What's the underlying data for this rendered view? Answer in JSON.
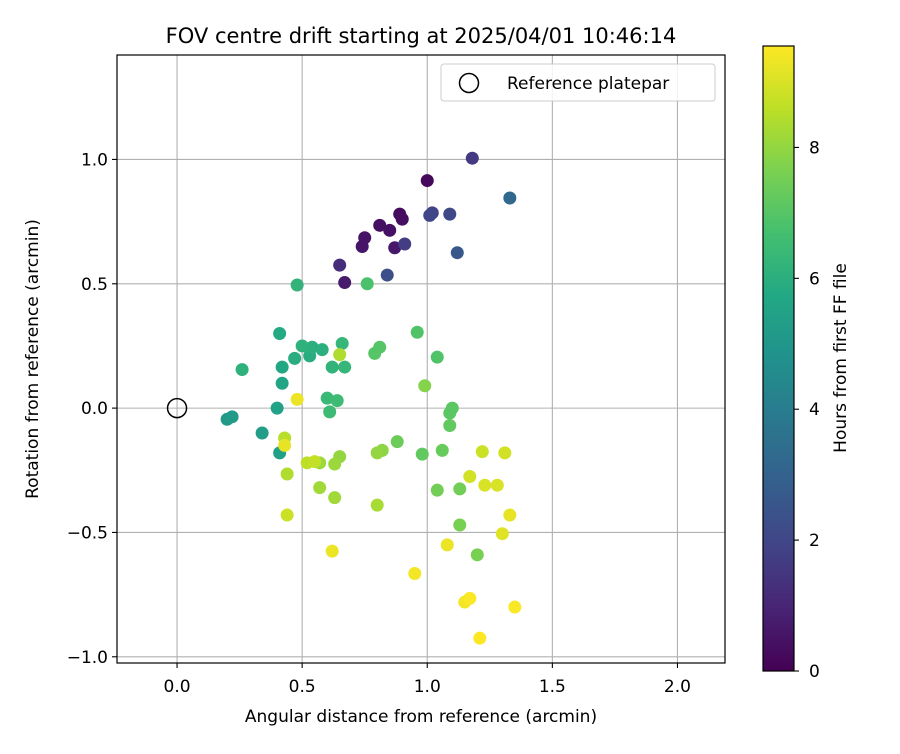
{
  "chart_data": {
    "type": "scatter",
    "title": "FOV centre drift starting at 2025/04/01 10:46:14",
    "xlabel": "Angular distance from reference (arcmin)",
    "ylabel": "Rotation from reference (arcmin)",
    "xlim": [
      -0.24,
      2.19
    ],
    "ylim": [
      -1.025,
      1.42
    ],
    "xticks": [
      0.0,
      0.5,
      1.0,
      1.5,
      2.0
    ],
    "xtick_labels": [
      "0.0",
      "0.5",
      "1.0",
      "1.5",
      "2.0"
    ],
    "yticks": [
      -1.0,
      -0.5,
      0.0,
      0.5,
      1.0
    ],
    "ytick_labels": [
      "−1.0",
      "−0.5",
      "0.0",
      "0.5",
      "1.0"
    ],
    "grid": true,
    "legend": {
      "placement": "top-right",
      "entries": [
        "Reference platepar"
      ]
    },
    "reference_point": {
      "x": 0.0,
      "y": 0.0
    },
    "colorbar": {
      "label": "Hours from first FF file",
      "colormap": "viridis",
      "range": [
        0,
        9.55
      ],
      "ticks": [
        0,
        2,
        4,
        6,
        8
      ],
      "tick_labels": [
        "0",
        "2",
        "4",
        "6",
        "8"
      ]
    },
    "points": [
      {
        "x": 1.0,
        "y": 0.915,
        "c": 0.2
      },
      {
        "x": 0.89,
        "y": 0.78,
        "c": 0.3
      },
      {
        "x": 0.9,
        "y": 0.76,
        "c": 0.35
      },
      {
        "x": 0.81,
        "y": 0.735,
        "c": 0.4
      },
      {
        "x": 0.85,
        "y": 0.715,
        "c": 0.45
      },
      {
        "x": 0.75,
        "y": 0.685,
        "c": 0.5
      },
      {
        "x": 0.74,
        "y": 0.65,
        "c": 0.55
      },
      {
        "x": 0.87,
        "y": 0.645,
        "c": 0.6
      },
      {
        "x": 0.67,
        "y": 0.505,
        "c": 0.7
      },
      {
        "x": 0.65,
        "y": 0.575,
        "c": 1.2
      },
      {
        "x": 1.18,
        "y": 1.005,
        "c": 1.6
      },
      {
        "x": 0.91,
        "y": 0.66,
        "c": 1.7
      },
      {
        "x": 1.02,
        "y": 0.785,
        "c": 1.9
      },
      {
        "x": 1.01,
        "y": 0.775,
        "c": 2.0
      },
      {
        "x": 1.09,
        "y": 0.78,
        "c": 2.1
      },
      {
        "x": 0.84,
        "y": 0.535,
        "c": 2.3
      },
      {
        "x": 1.12,
        "y": 0.625,
        "c": 2.6
      },
      {
        "x": 1.33,
        "y": 0.845,
        "c": 3.2
      },
      {
        "x": 0.2,
        "y": -0.045,
        "c": 5.1
      },
      {
        "x": 0.22,
        "y": -0.035,
        "c": 5.2
      },
      {
        "x": 0.34,
        "y": -0.1,
        "c": 5.3
      },
      {
        "x": 0.41,
        "y": -0.18,
        "c": 5.4
      },
      {
        "x": 0.4,
        "y": 0.0,
        "c": 5.5
      },
      {
        "x": 0.42,
        "y": 0.1,
        "c": 5.6
      },
      {
        "x": 0.42,
        "y": 0.165,
        "c": 5.7
      },
      {
        "x": 0.41,
        "y": 0.3,
        "c": 5.8
      },
      {
        "x": 0.47,
        "y": 0.2,
        "c": 5.9
      },
      {
        "x": 0.53,
        "y": 0.21,
        "c": 5.9
      },
      {
        "x": 0.54,
        "y": 0.245,
        "c": 6.0
      },
      {
        "x": 0.58,
        "y": 0.235,
        "c": 6.0
      },
      {
        "x": 0.5,
        "y": 0.25,
        "c": 6.1
      },
      {
        "x": 0.26,
        "y": 0.155,
        "c": 6.1
      },
      {
        "x": 0.48,
        "y": 0.495,
        "c": 6.2
      },
      {
        "x": 0.62,
        "y": 0.165,
        "c": 6.2
      },
      {
        "x": 0.66,
        "y": 0.26,
        "c": 6.3
      },
      {
        "x": 0.67,
        "y": 0.165,
        "c": 6.3
      },
      {
        "x": 0.6,
        "y": 0.04,
        "c": 6.4
      },
      {
        "x": 0.64,
        "y": 0.03,
        "c": 6.5
      },
      {
        "x": 0.61,
        "y": -0.015,
        "c": 6.5
      },
      {
        "x": 0.76,
        "y": 0.5,
        "c": 6.8
      },
      {
        "x": 0.96,
        "y": 0.305,
        "c": 6.9
      },
      {
        "x": 1.04,
        "y": 0.205,
        "c": 6.9
      },
      {
        "x": 0.79,
        "y": 0.22,
        "c": 7.0
      },
      {
        "x": 0.81,
        "y": 0.245,
        "c": 7.0
      },
      {
        "x": 1.1,
        "y": 0.0,
        "c": 7.1
      },
      {
        "x": 1.09,
        "y": -0.02,
        "c": 7.1
      },
      {
        "x": 1.09,
        "y": -0.07,
        "c": 7.2
      },
      {
        "x": 0.98,
        "y": -0.185,
        "c": 7.2
      },
      {
        "x": 1.06,
        "y": -0.17,
        "c": 7.3
      },
      {
        "x": 0.88,
        "y": -0.135,
        "c": 7.4
      },
      {
        "x": 1.04,
        "y": -0.33,
        "c": 7.5
      },
      {
        "x": 1.13,
        "y": -0.325,
        "c": 7.5
      },
      {
        "x": 1.13,
        "y": -0.47,
        "c": 7.6
      },
      {
        "x": 1.2,
        "y": -0.59,
        "c": 7.6
      },
      {
        "x": 0.99,
        "y": 0.09,
        "c": 7.8
      },
      {
        "x": 0.82,
        "y": -0.17,
        "c": 7.9
      },
      {
        "x": 0.8,
        "y": -0.18,
        "c": 8.0
      },
      {
        "x": 0.65,
        "y": -0.195,
        "c": 8.0
      },
      {
        "x": 0.63,
        "y": -0.225,
        "c": 8.1
      },
      {
        "x": 0.57,
        "y": -0.22,
        "c": 8.1
      },
      {
        "x": 0.57,
        "y": -0.32,
        "c": 8.2
      },
      {
        "x": 0.63,
        "y": -0.36,
        "c": 8.2
      },
      {
        "x": 0.8,
        "y": -0.39,
        "c": 8.3
      },
      {
        "x": 0.44,
        "y": -0.265,
        "c": 8.4
      },
      {
        "x": 0.65,
        "y": 0.215,
        "c": 8.4
      },
      {
        "x": 0.43,
        "y": -0.12,
        "c": 8.5
      },
      {
        "x": 0.52,
        "y": -0.22,
        "c": 8.6
      },
      {
        "x": 0.55,
        "y": -0.215,
        "c": 8.7
      },
      {
        "x": 0.44,
        "y": -0.43,
        "c": 8.8
      },
      {
        "x": 1.22,
        "y": -0.175,
        "c": 8.8
      },
      {
        "x": 1.17,
        "y": -0.275,
        "c": 8.9
      },
      {
        "x": 1.23,
        "y": -0.31,
        "c": 9.0
      },
      {
        "x": 1.28,
        "y": -0.31,
        "c": 9.0
      },
      {
        "x": 1.31,
        "y": -0.18,
        "c": 8.9
      },
      {
        "x": 1.3,
        "y": -0.505,
        "c": 9.1
      },
      {
        "x": 1.33,
        "y": -0.43,
        "c": 9.2
      },
      {
        "x": 0.43,
        "y": -0.15,
        "c": 9.2
      },
      {
        "x": 0.48,
        "y": 0.035,
        "c": 9.3
      },
      {
        "x": 0.62,
        "y": -0.575,
        "c": 9.3
      },
      {
        "x": 1.08,
        "y": -0.55,
        "c": 9.3
      },
      {
        "x": 0.95,
        "y": -0.665,
        "c": 9.4
      },
      {
        "x": 1.15,
        "y": -0.78,
        "c": 9.4
      },
      {
        "x": 1.17,
        "y": -0.765,
        "c": 9.5
      },
      {
        "x": 1.35,
        "y": -0.8,
        "c": 9.5
      },
      {
        "x": 1.21,
        "y": -0.925,
        "c": 9.55
      }
    ]
  }
}
